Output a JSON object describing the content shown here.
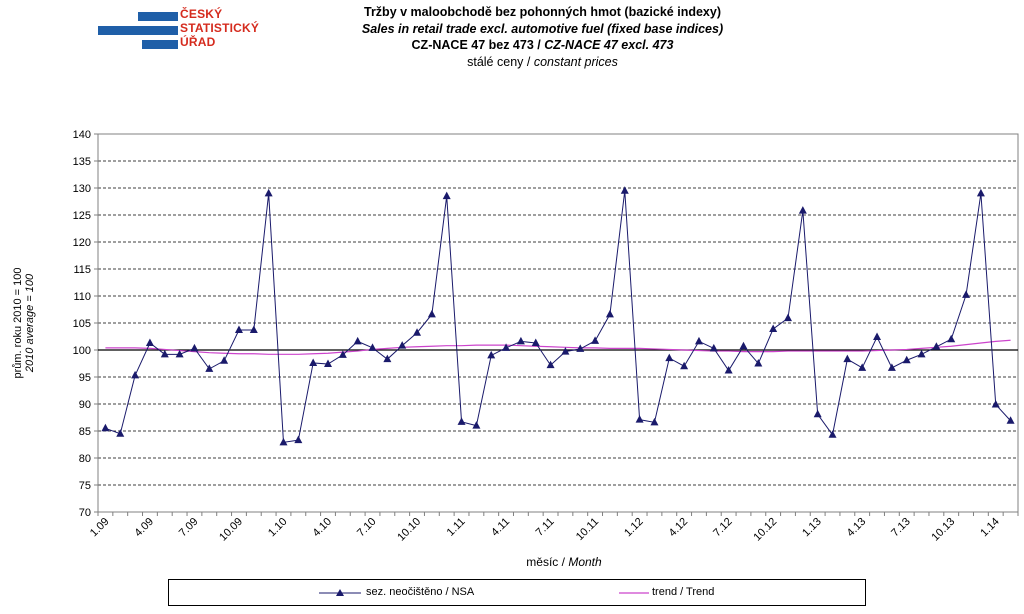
{
  "logo": {
    "lines": [
      "ČESKÝ",
      "STATISTICKÝ",
      "ÚŘAD"
    ],
    "colors": {
      "bars": "#1f5fa8",
      "text": "#d52b1e"
    }
  },
  "header": {
    "line1": "Tržby v maloobchodě bez pohonných hmot (bazické indexy)",
    "line2": "Sales in retail trade excl. automotive fuel (fixed base indices)",
    "line3_cz": "CZ-NACE 47 bez 473",
    "line3_sep": " / ",
    "line3_en": "CZ-NACE 47 excl. 473",
    "line4_cz": "stálé ceny",
    "line4_sep": " / ",
    "line4_en": "constant prices"
  },
  "chart_data": {
    "type": "line",
    "xlabel_cz": "měsíc",
    "xlabel_sep": " / ",
    "xlabel_en": "Month",
    "ylabel_cz": "prům. roku 2010 = 100",
    "ylabel_en": "2010 average = 100",
    "ylim": [
      70,
      140
    ],
    "ytick_step": 5,
    "yticks": [
      "70",
      "75",
      "80",
      "85",
      "90",
      "95",
      "100",
      "105",
      "110",
      "115",
      "120",
      "125",
      "130",
      "135",
      "140"
    ],
    "reference_line": 100,
    "grid": "horizontal dashed",
    "x_tick_labels": [
      {
        "i": 0,
        "label": "1.09"
      },
      {
        "i": 3,
        "label": "4.09"
      },
      {
        "i": 6,
        "label": "7.09"
      },
      {
        "i": 9,
        "label": "10.09"
      },
      {
        "i": 12,
        "label": "1.10"
      },
      {
        "i": 15,
        "label": "4.10"
      },
      {
        "i": 18,
        "label": "7.10"
      },
      {
        "i": 21,
        "label": "10.10"
      },
      {
        "i": 24,
        "label": "1.11"
      },
      {
        "i": 27,
        "label": "4.11"
      },
      {
        "i": 30,
        "label": "7.11"
      },
      {
        "i": 33,
        "label": "10.11"
      },
      {
        "i": 36,
        "label": "1.12"
      },
      {
        "i": 39,
        "label": "4.12"
      },
      {
        "i": 42,
        "label": "7.12"
      },
      {
        "i": 45,
        "label": "10.12"
      },
      {
        "i": 48,
        "label": "1.13"
      },
      {
        "i": 51,
        "label": "4.13"
      },
      {
        "i": 54,
        "label": "7.13"
      },
      {
        "i": 57,
        "label": "10.13"
      },
      {
        "i": 60,
        "label": "1.14"
      }
    ],
    "series": [
      {
        "name": "sez. neočištěno / NSA",
        "color": "#1a1a6b",
        "marker": "triangle",
        "values": [
          85.5,
          84.5,
          95.3,
          101.3,
          99.2,
          99.2,
          100.3,
          96.5,
          98.0,
          103.7,
          103.7,
          129.0,
          82.9,
          83.3,
          97.6,
          97.4,
          99.1,
          101.6,
          100.4,
          98.3,
          100.8,
          103.2,
          106.6,
          128.5,
          86.7,
          86.0,
          99.0,
          100.4,
          101.6,
          101.3,
          97.2,
          99.7,
          100.2,
          101.7,
          106.6,
          129.5,
          87.1,
          86.6,
          98.5,
          97.0,
          101.6,
          100.3,
          96.2,
          100.7,
          97.5,
          103.9,
          105.9,
          125.8,
          88.1,
          84.3,
          98.3,
          96.7,
          102.4,
          96.7,
          98.1,
          99.2,
          100.6,
          102.0,
          110.2,
          129.0,
          89.9,
          86.9
        ]
      },
      {
        "name": "trend / Trend",
        "color": "#cc44cc",
        "marker": "none",
        "values": [
          100.4,
          100.4,
          100.4,
          100.3,
          100.1,
          99.9,
          99.7,
          99.5,
          99.4,
          99.3,
          99.3,
          99.2,
          99.2,
          99.2,
          99.3,
          99.4,
          99.6,
          99.8,
          100.1,
          100.3,
          100.5,
          100.6,
          100.7,
          100.8,
          100.8,
          100.9,
          100.9,
          100.9,
          100.8,
          100.7,
          100.6,
          100.5,
          100.4,
          100.4,
          100.3,
          100.3,
          100.3,
          100.2,
          100.1,
          100.0,
          99.9,
          99.8,
          99.8,
          99.7,
          99.7,
          99.7,
          99.8,
          99.8,
          99.8,
          99.8,
          99.8,
          99.8,
          99.9,
          100.0,
          100.1,
          100.3,
          100.5,
          100.7,
          101.0,
          101.3,
          101.6,
          101.8
        ]
      }
    ]
  }
}
